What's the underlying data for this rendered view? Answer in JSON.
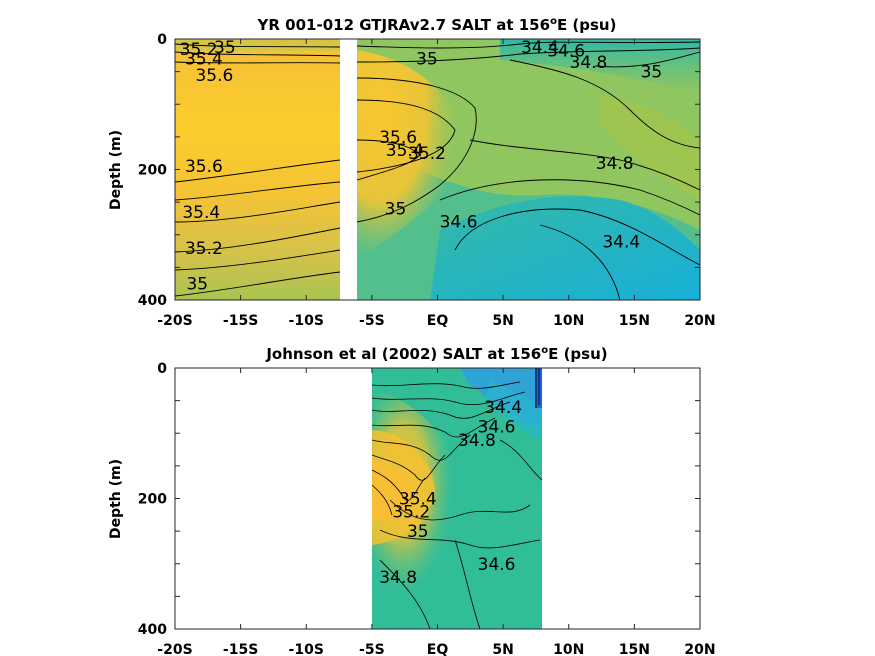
{
  "chart_data": [
    {
      "type": "heatmap",
      "title_main": "YR 001-012 GTJRAv2.7 SALT at 156",
      "title_sup": "o",
      "title_tail": "E (psu)",
      "ylabel": "Depth (m)",
      "xlim": [
        -20,
        20
      ],
      "ylim": [
        0,
        400
      ],
      "y_reversed": true,
      "x_ticks": [
        "-20S",
        "-15S",
        "-10S",
        "-5S",
        "EQ",
        "5N",
        "10N",
        "15N",
        "20N"
      ],
      "y_ticks": [
        "0",
        "200",
        "400"
      ],
      "data_gaps": [
        [
          -7.2,
          -6.4
        ]
      ],
      "contour_labels": [
        {
          "text": "35.2",
          "lat": -18.2,
          "depth": 15
        },
        {
          "text": "35",
          "lat": -16.2,
          "depth": 12
        },
        {
          "text": "35.4",
          "lat": -17.8,
          "depth": 30
        },
        {
          "text": "35.6",
          "lat": -17.0,
          "depth": 55
        },
        {
          "text": "35.6",
          "lat": -17.8,
          "depth": 195
        },
        {
          "text": "35.4",
          "lat": -18.0,
          "depth": 265
        },
        {
          "text": "35.2",
          "lat": -17.8,
          "depth": 320
        },
        {
          "text": "35",
          "lat": -18.3,
          "depth": 375
        },
        {
          "text": "35",
          "lat": -0.8,
          "depth": 30
        },
        {
          "text": "34.4",
          "lat": 7.8,
          "depth": 12
        },
        {
          "text": "34.6",
          "lat": 9.8,
          "depth": 18
        },
        {
          "text": "34.8",
          "lat": 11.5,
          "depth": 35
        },
        {
          "text": "35",
          "lat": 16.3,
          "depth": 50
        },
        {
          "text": "35.6",
          "lat": -3.0,
          "depth": 150
        },
        {
          "text": "35.4",
          "lat": -2.5,
          "depth": 170
        },
        {
          "text": "35.2",
          "lat": -0.8,
          "depth": 175
        },
        {
          "text": "34.8",
          "lat": 13.5,
          "depth": 190
        },
        {
          "text": "35",
          "lat": -3.2,
          "depth": 260
        },
        {
          "text": "34.6",
          "lat": 1.6,
          "depth": 280
        },
        {
          "text": "34.4",
          "lat": 14.0,
          "depth": 310
        }
      ]
    },
    {
      "type": "heatmap",
      "title_main": "Johnson et al (2002) SALT at 156",
      "title_sup": "o",
      "title_tail": "E (psu)",
      "ylabel": "Depth (m)",
      "xlim": [
        -20,
        20
      ],
      "ylim": [
        0,
        400
      ],
      "y_reversed": true,
      "x_ticks": [
        "-20S",
        "-15S",
        "-10S",
        "-5S",
        "EQ",
        "5N",
        "10N",
        "15N",
        "20N"
      ],
      "y_ticks": [
        "0",
        "200",
        "400"
      ],
      "data_range": [
        -5,
        8
      ],
      "contour_labels": [
        {
          "text": "34.4",
          "lat": 5.0,
          "depth": 60
        },
        {
          "text": "34.6",
          "lat": 4.5,
          "depth": 90
        },
        {
          "text": "34.8",
          "lat": 3.0,
          "depth": 110
        },
        {
          "text": "35.4",
          "lat": -1.5,
          "depth": 200
        },
        {
          "text": "35.2",
          "lat": -2.0,
          "depth": 220
        },
        {
          "text": "35",
          "lat": -1.5,
          "depth": 250
        },
        {
          "text": "34.6",
          "lat": 4.5,
          "depth": 300
        },
        {
          "text": "34.8",
          "lat": -3.0,
          "depth": 320
        }
      ]
    }
  ]
}
